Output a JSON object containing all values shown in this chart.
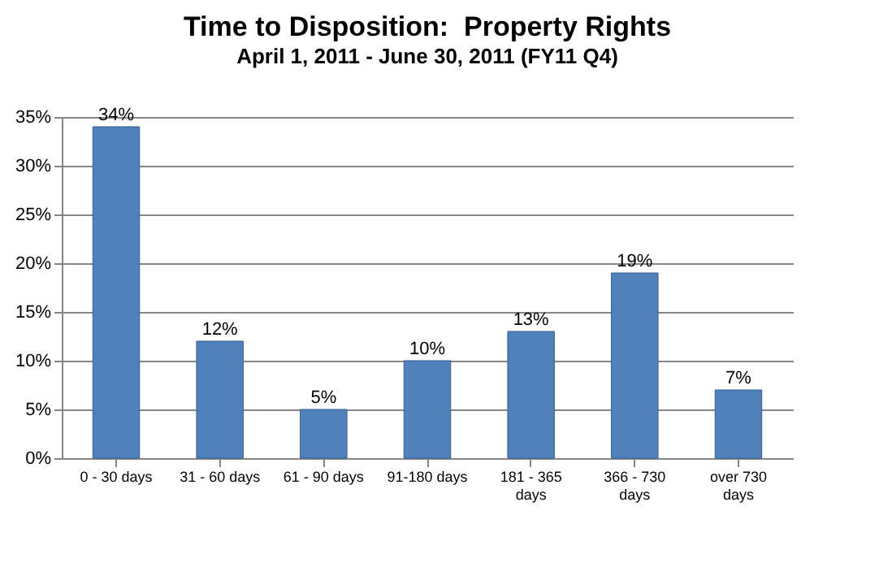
{
  "chart_data": {
    "type": "bar",
    "title": "Time to Disposition:  Property Rights",
    "subtitle": "April 1, 2011 - June 30, 2011 (FY11 Q4)",
    "categories": [
      "0 - 30 days",
      "31 - 60 days",
      "61 - 90 days",
      "91-180 days",
      "181 - 365 days",
      "366 - 730 days",
      "over 730 days"
    ],
    "values": [
      34,
      12,
      5,
      10,
      13,
      19,
      7
    ],
    "value_labels": [
      "34%",
      "12%",
      "5%",
      "10%",
      "13%",
      "19%",
      "7%"
    ],
    "color": "#4f81bd",
    "ylim": [
      0,
      35
    ],
    "yticks": [
      {
        "value": 0,
        "label": "0%"
      },
      {
        "value": 5,
        "label": "5%"
      },
      {
        "value": 10,
        "label": "10%"
      },
      {
        "value": 15,
        "label": "15%"
      },
      {
        "value": 20,
        "label": "20%"
      },
      {
        "value": 25,
        "label": "25%"
      },
      {
        "value": 30,
        "label": "30%"
      },
      {
        "value": 35,
        "label": "35%"
      }
    ],
    "grid": true
  }
}
